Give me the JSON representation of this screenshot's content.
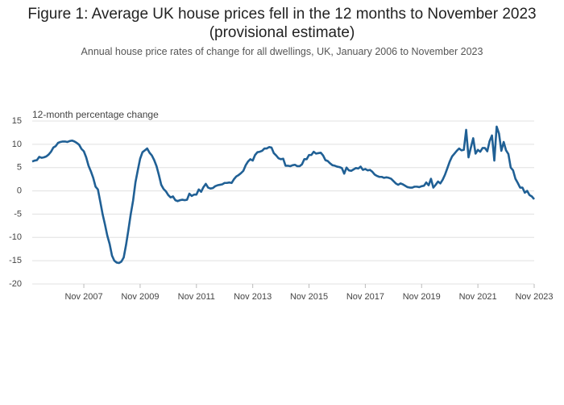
{
  "chart_data": {
    "type": "line",
    "title": "Figure 1: Average UK house prices fell in the 12 months to November 2023 (provisional estimate)",
    "subtitle": "Annual house price rates of change for all dwellings, UK, January 2006 to November 2023",
    "y_label": "12-month percentage change",
    "x": [
      "2006-01",
      "2006-02",
      "2006-03",
      "2006-04",
      "2006-05",
      "2006-06",
      "2006-07",
      "2006-08",
      "2006-09",
      "2006-10",
      "2006-11",
      "2006-12",
      "2007-01",
      "2007-02",
      "2007-03",
      "2007-04",
      "2007-05",
      "2007-06",
      "2007-07",
      "2007-08",
      "2007-09",
      "2007-10",
      "2007-11",
      "2007-12",
      "2008-01",
      "2008-02",
      "2008-03",
      "2008-04",
      "2008-05",
      "2008-06",
      "2008-07",
      "2008-08",
      "2008-09",
      "2008-10",
      "2008-11",
      "2008-12",
      "2009-01",
      "2009-02",
      "2009-03",
      "2009-04",
      "2009-05",
      "2009-06",
      "2009-07",
      "2009-08",
      "2009-09",
      "2009-10",
      "2009-11",
      "2009-12",
      "2010-01",
      "2010-02",
      "2010-03",
      "2010-04",
      "2010-05",
      "2010-06",
      "2010-07",
      "2010-08",
      "2010-09",
      "2010-10",
      "2010-11",
      "2010-12",
      "2011-01",
      "2011-02",
      "2011-03",
      "2011-04",
      "2011-05",
      "2011-06",
      "2011-07",
      "2011-08",
      "2011-09",
      "2011-10",
      "2011-11",
      "2011-12",
      "2012-01",
      "2012-02",
      "2012-03",
      "2012-04",
      "2012-05",
      "2012-06",
      "2012-07",
      "2012-08",
      "2012-09",
      "2012-10",
      "2012-11",
      "2012-12",
      "2013-01",
      "2013-02",
      "2013-03",
      "2013-04",
      "2013-05",
      "2013-06",
      "2013-07",
      "2013-08",
      "2013-09",
      "2013-10",
      "2013-11",
      "2013-12",
      "2014-01",
      "2014-02",
      "2014-03",
      "2014-04",
      "2014-05",
      "2014-06",
      "2014-07",
      "2014-08",
      "2014-09",
      "2014-10",
      "2014-11",
      "2014-12",
      "2015-01",
      "2015-02",
      "2015-03",
      "2015-04",
      "2015-05",
      "2015-06",
      "2015-07",
      "2015-08",
      "2015-09",
      "2015-10",
      "2015-11",
      "2015-12",
      "2016-01",
      "2016-02",
      "2016-03",
      "2016-04",
      "2016-05",
      "2016-06",
      "2016-07",
      "2016-08",
      "2016-09",
      "2016-10",
      "2016-11",
      "2016-12",
      "2017-01",
      "2017-02",
      "2017-03",
      "2017-04",
      "2017-05",
      "2017-06",
      "2017-07",
      "2017-08",
      "2017-09",
      "2017-10",
      "2017-11",
      "2017-12",
      "2018-01",
      "2018-02",
      "2018-03",
      "2018-04",
      "2018-05",
      "2018-06",
      "2018-07",
      "2018-08",
      "2018-09",
      "2018-10",
      "2018-11",
      "2018-12",
      "2019-01",
      "2019-02",
      "2019-03",
      "2019-04",
      "2019-05",
      "2019-06",
      "2019-07",
      "2019-08",
      "2019-09",
      "2019-10",
      "2019-11",
      "2019-12",
      "2020-01",
      "2020-02",
      "2020-03",
      "2020-04",
      "2020-05",
      "2020-06",
      "2020-07",
      "2020-08",
      "2020-09",
      "2020-10",
      "2020-11",
      "2020-12",
      "2021-01",
      "2021-02",
      "2021-03",
      "2021-04",
      "2021-05",
      "2021-06",
      "2021-07",
      "2021-08",
      "2021-09",
      "2021-10",
      "2021-11",
      "2021-12",
      "2022-01",
      "2022-02",
      "2022-03",
      "2022-04",
      "2022-05",
      "2022-06",
      "2022-07",
      "2022-08",
      "2022-09",
      "2022-10",
      "2022-11",
      "2022-12",
      "2023-01",
      "2023-02",
      "2023-03",
      "2023-04",
      "2023-05",
      "2023-06",
      "2023-07",
      "2023-08",
      "2023-09",
      "2023-10",
      "2023-11"
    ],
    "series": [
      {
        "color": "#206095",
        "values": [
          6.3,
          6.5,
          6.6,
          7.3,
          7.1,
          7.2,
          7.4,
          7.8,
          8.4,
          9.3,
          9.6,
          10.3,
          10.5,
          10.6,
          10.6,
          10.5,
          10.7,
          10.8,
          10.6,
          10.3,
          9.9,
          9.0,
          8.5,
          7.2,
          5.4,
          4.2,
          2.8,
          0.9,
          0.3,
          -2.3,
          -5.0,
          -7.2,
          -9.6,
          -11.4,
          -13.9,
          -15.0,
          -15.4,
          -15.5,
          -15.2,
          -14.3,
          -11.6,
          -8.4,
          -5.0,
          -2.1,
          1.8,
          4.4,
          6.9,
          8.3,
          8.7,
          9.1,
          8.2,
          7.6,
          6.6,
          5.3,
          3.4,
          1.3,
          0.4,
          -0.1,
          -0.9,
          -1.4,
          -1.2,
          -2.0,
          -2.2,
          -2.0,
          -1.9,
          -2.0,
          -1.9,
          -0.6,
          -1.1,
          -0.8,
          -0.8,
          0.3,
          -0.2,
          0.8,
          1.5,
          0.7,
          0.5,
          0.6,
          1.0,
          1.2,
          1.3,
          1.4,
          1.7,
          1.7,
          1.8,
          1.7,
          2.5,
          3.1,
          3.4,
          3.8,
          4.3,
          5.5,
          6.3,
          6.8,
          6.5,
          7.7,
          8.3,
          8.4,
          8.6,
          9.1,
          9.1,
          9.4,
          9.3,
          8.1,
          7.6,
          7.0,
          6.8,
          6.9,
          5.4,
          5.4,
          5.3,
          5.5,
          5.6,
          5.3,
          5.3,
          5.7,
          6.8,
          6.8,
          7.7,
          7.7,
          8.4,
          8.0,
          8.1,
          8.2,
          7.6,
          6.6,
          6.4,
          5.9,
          5.5,
          5.4,
          5.2,
          5.1,
          4.9,
          3.7,
          5.0,
          4.4,
          4.3,
          4.6,
          4.9,
          4.8,
          5.2,
          4.5,
          4.7,
          4.4,
          4.5,
          4.1,
          3.5,
          3.2,
          3.0,
          3.0,
          2.8,
          2.9,
          2.8,
          2.6,
          2.1,
          1.6,
          1.3,
          1.6,
          1.4,
          1.1,
          0.8,
          0.7,
          0.7,
          0.9,
          0.9,
          0.8,
          1.0,
          1.1,
          1.8,
          1.2,
          2.6,
          0.7,
          1.3,
          2.0,
          1.6,
          2.4,
          3.5,
          4.9,
          6.3,
          7.4,
          8.0,
          8.6,
          9.1,
          8.7,
          8.8,
          13.1,
          7.2,
          9.3,
          11.3,
          8.0,
          8.8,
          8.4,
          9.2,
          9.2,
          8.5,
          10.7,
          11.9,
          6.5,
          13.8,
          12.3,
          8.6,
          10.5,
          8.7,
          7.9,
          5.0,
          4.4,
          2.6,
          1.7,
          0.7,
          0.7,
          -0.4,
          0.0,
          -0.9,
          -1.2,
          -1.8
        ]
      }
    ],
    "xticks": [
      {
        "value": "2007-11",
        "label": "Nov 2007"
      },
      {
        "value": "2009-11",
        "label": "Nov 2009"
      },
      {
        "value": "2011-11",
        "label": "Nov 2011"
      },
      {
        "value": "2013-11",
        "label": "Nov 2013"
      },
      {
        "value": "2015-11",
        "label": "Nov 2015"
      },
      {
        "value": "2017-11",
        "label": "Nov 2017"
      },
      {
        "value": "2019-11",
        "label": "Nov 2019"
      },
      {
        "value": "2021-11",
        "label": "Nov 2021"
      },
      {
        "value": "2023-11",
        "label": "Nov 2023"
      }
    ],
    "ylim": [
      -20,
      15
    ],
    "yticks": [
      15,
      10,
      5,
      0,
      -5,
      -10,
      -15,
      -20
    ],
    "grid": true
  }
}
